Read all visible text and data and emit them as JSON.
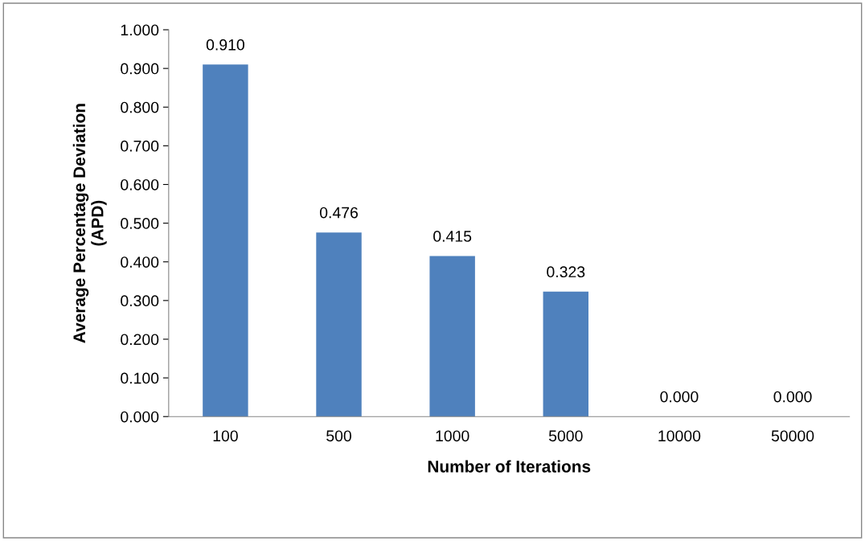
{
  "chart_data": {
    "type": "bar",
    "xlabel": "Number of Iterations",
    "ylabel": "Average Percentage Deviation\n(APD)",
    "categories": [
      "100",
      "500",
      "1000",
      "5000",
      "10000",
      "50000"
    ],
    "values": [
      0.91,
      0.476,
      0.415,
      0.323,
      0.0,
      0.0
    ],
    "value_labels": [
      "0.910",
      "0.476",
      "0.415",
      "0.323",
      "0.000",
      "0.000"
    ],
    "color": "#4f81bd",
    "ylim": [
      0,
      1
    ],
    "yticks": [
      {
        "value": 0,
        "label": "0.000"
      },
      {
        "value": 0.1,
        "label": "0.100"
      },
      {
        "value": 0.2,
        "label": "0.200"
      },
      {
        "value": 0.3,
        "label": "0.300"
      },
      {
        "value": 0.4,
        "label": "0.400"
      },
      {
        "value": 0.5,
        "label": "0.500"
      },
      {
        "value": 0.6,
        "label": "0.600"
      },
      {
        "value": 0.7,
        "label": "0.700"
      },
      {
        "value": 0.8,
        "label": "0.800"
      },
      {
        "value": 0.9,
        "label": "0.900"
      },
      {
        "value": 1,
        "label": "1.000"
      }
    ],
    "grid": false,
    "legend": false
  }
}
